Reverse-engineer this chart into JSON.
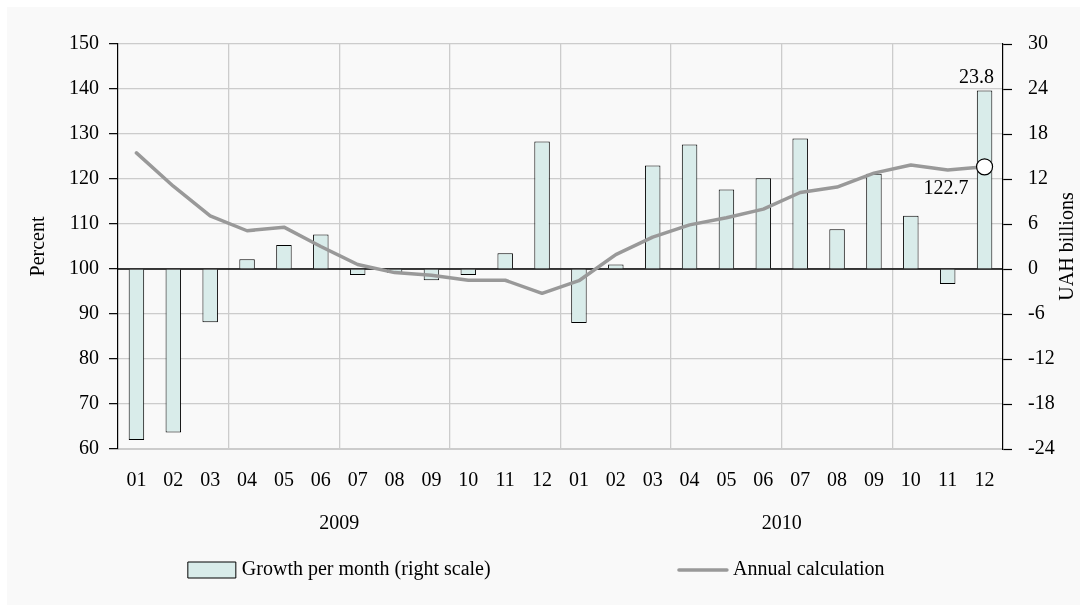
{
  "chart_data": {
    "type": "bar",
    "categories": [
      "01",
      "02",
      "03",
      "04",
      "05",
      "06",
      "07",
      "08",
      "09",
      "10",
      "11",
      "12",
      "01",
      "02",
      "03",
      "04",
      "05",
      "06",
      "07",
      "08",
      "09",
      "10",
      "11",
      "12"
    ],
    "ylabel": "Percent",
    "y2label": "UAH billions",
    "annotations": [
      "2009",
      "2010"
    ],
    "series": [
      {
        "name": "Growth per month (right scale)",
        "axis": "y2",
        "color": "#d9ecea",
        "values": [
          -22.8,
          -21.8,
          -7.1,
          1.3,
          3.2,
          4.6,
          -0.8,
          -0.5,
          -1.5,
          -0.8,
          2.1,
          17.0,
          -7.2,
          0.6,
          13.8,
          16.6,
          10.6,
          12.1,
          17.4,
          5.3,
          12.7,
          7.1,
          -2.0,
          23.8
        ],
        "value_labels": [
          null,
          null,
          null,
          null,
          null,
          null,
          null,
          null,
          null,
          null,
          null,
          null,
          null,
          null,
          null,
          null,
          null,
          null,
          null,
          null,
          null,
          null,
          null,
          "23.8"
        ]
      },
      {
        "name": "Annual calculation",
        "type": "line",
        "color": "#999999",
        "values": [
          125.8,
          118.4,
          111.8,
          108.5,
          109.3,
          105.0,
          101.0,
          99.2,
          98.6,
          97.5,
          97.5,
          94.6,
          97.4,
          103.2,
          107.1,
          109.8,
          111.4,
          113.3,
          117.0,
          118.2,
          121.3,
          123.1,
          122.0,
          122.7
        ]
      },
      {
        "type": "scatter",
        "color": "#ffffff",
        "marker": "circle",
        "values": [
          null,
          null,
          null,
          null,
          null,
          null,
          null,
          null,
          null,
          null,
          null,
          null,
          null,
          null,
          null,
          null,
          null,
          null,
          null,
          null,
          null,
          null,
          null,
          122.7
        ],
        "value_labels": [
          null,
          null,
          null,
          null,
          null,
          null,
          null,
          null,
          null,
          null,
          null,
          null,
          null,
          null,
          null,
          null,
          null,
          null,
          null,
          null,
          null,
          null,
          null,
          "122.7"
        ]
      }
    ],
    "ylim": [
      60,
      150
    ],
    "yticks": [
      60,
      70,
      80,
      90,
      100,
      110,
      120,
      130,
      140,
      150
    ],
    "y2lim": [
      -24,
      30
    ],
    "y2ticks": [
      -24,
      -18,
      -12,
      -6,
      0,
      6,
      12,
      18,
      24,
      30
    ],
    "ref_lines": [
      {
        "axis": "y2",
        "value": 0,
        "color": "#000000"
      }
    ],
    "grid": true,
    "legend": "bottom"
  }
}
